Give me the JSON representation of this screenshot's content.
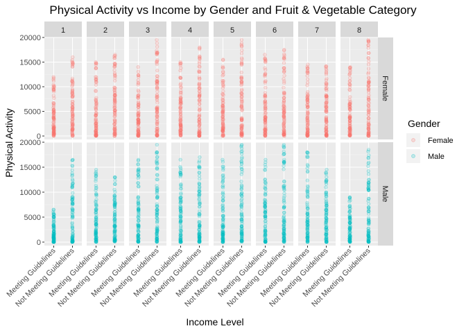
{
  "chart_data": {
    "type": "scatter",
    "title": "Physical Activity vs Income by Gender and Fruit & Vegetable Category",
    "xlabel": "Income Level",
    "ylabel": "Physical Activity",
    "x_categories": [
      "Meeting Guidelines",
      "Not Meeting Guidelines"
    ],
    "column_facets": [
      "1",
      "2",
      "3",
      "4",
      "5",
      "6",
      "7",
      "8"
    ],
    "row_facets": [
      "Female",
      "Male"
    ],
    "ylim": [
      -700,
      20000
    ],
    "y_ticks": [
      0,
      5000,
      10000,
      15000,
      20000
    ],
    "y_tick_labels": [
      "0",
      "5000",
      "10000",
      "15000",
      "20000"
    ],
    "grid": true,
    "legend": {
      "title": "Gender",
      "placement": "right",
      "entries": [
        {
          "label": "Female",
          "color": "#F8766D"
        },
        {
          "label": "Male",
          "color": "#00BFC4"
        }
      ]
    },
    "panels": [
      {
        "income": "1",
        "gender": "Female",
        "meeting_max": 12000,
        "not_meeting_max": 16000
      },
      {
        "income": "2",
        "gender": "Female",
        "meeting_max": 15000,
        "not_meeting_max": 16500
      },
      {
        "income": "3",
        "gender": "Female",
        "meeting_max": 14000,
        "not_meeting_max": 19500
      },
      {
        "income": "4",
        "gender": "Female",
        "meeting_max": 15000,
        "not_meeting_max": 18000
      },
      {
        "income": "5",
        "gender": "Female",
        "meeting_max": 15500,
        "not_meeting_max": 19500
      },
      {
        "income": "6",
        "gender": "Female",
        "meeting_max": 16500,
        "not_meeting_max": 17500
      },
      {
        "income": "7",
        "gender": "Female",
        "meeting_max": 14500,
        "not_meeting_max": 14200
      },
      {
        "income": "8",
        "gender": "Female",
        "meeting_max": 14000,
        "not_meeting_max": 19500
      },
      {
        "income": "1",
        "gender": "Male",
        "meeting_max": 6500,
        "not_meeting_max": 16500
      },
      {
        "income": "2",
        "gender": "Male",
        "meeting_max": 14500,
        "not_meeting_max": 13000
      },
      {
        "income": "3",
        "gender": "Male",
        "meeting_max": 16500,
        "not_meeting_max": 19500
      },
      {
        "income": "4",
        "gender": "Male",
        "meeting_max": 16500,
        "not_meeting_max": 17000
      },
      {
        "income": "5",
        "gender": "Male",
        "meeting_max": 16500,
        "not_meeting_max": 19500
      },
      {
        "income": "6",
        "gender": "Male",
        "meeting_max": 16500,
        "not_meeting_max": 19500
      },
      {
        "income": "7",
        "gender": "Male",
        "meeting_max": 18000,
        "not_meeting_max": 14500
      },
      {
        "income": "8",
        "gender": "Male",
        "meeting_max": 9000,
        "not_meeting_max": 18500
      }
    ]
  }
}
